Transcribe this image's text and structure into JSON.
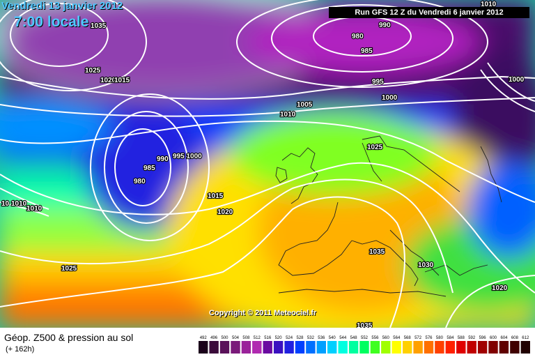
{
  "header": {
    "date": "Vendredi 13 janvier 2012",
    "time": "7:00 locale",
    "run": "Run GFS 12 Z du Vendredi 6 janvier 2012",
    "copyright": "Copyright © 2011 Meteociel.fr"
  },
  "footer": {
    "title": "Géop. Z500 & pression au sol",
    "lead": "(+ 162h)"
  },
  "legend": {
    "labels": [
      "492",
      "496",
      "500",
      "504",
      "508",
      "512",
      "516",
      "520",
      "524",
      "528",
      "532",
      "536",
      "540",
      "544",
      "548",
      "552",
      "556",
      "560",
      "564",
      "568",
      "572",
      "576",
      "580",
      "584",
      "588",
      "592",
      "596",
      "600",
      "604",
      "608",
      "612"
    ],
    "colors": [
      "#1a001a",
      "#3a0a3a",
      "#5a125a",
      "#7a1a7a",
      "#9a229a",
      "#b02ab0",
      "#6a0aa0",
      "#3a10c0",
      "#2020e0",
      "#0040ff",
      "#0070ff",
      "#00a0ff",
      "#00d0ff",
      "#00ffe0",
      "#00ffa0",
      "#00ff60",
      "#40ff20",
      "#a0ff00",
      "#ffff00",
      "#ffd000",
      "#ffa000",
      "#ff7000",
      "#ff4000",
      "#ff2000",
      "#e00000",
      "#c00000",
      "#a00000",
      "#800000",
      "#600000",
      "#400000",
      "#200000"
    ]
  },
  "isobars": [
    {
      "text": "1035"
    },
    {
      "text": "1025"
    },
    {
      "text": "1020"
    },
    {
      "text": "1015"
    },
    {
      "text": "990"
    },
    {
      "text": "980"
    },
    {
      "text": "985"
    },
    {
      "text": "995"
    },
    {
      "text": "1000"
    },
    {
      "text": "1000"
    },
    {
      "text": "1010"
    },
    {
      "text": "1005"
    },
    {
      "text": "1010"
    },
    {
      "text": "1025"
    },
    {
      "text": "985"
    },
    {
      "text": "990"
    },
    {
      "text": "995 1000"
    },
    {
      "text": "980"
    },
    {
      "text": "1015"
    },
    {
      "text": "1020"
    },
    {
      "text": "1035"
    },
    {
      "text": "1030"
    },
    {
      "text": "1020"
    },
    {
      "text": "1025"
    },
    {
      "text": "1035"
    },
    {
      "text": "10"
    },
    {
      "text": "1010"
    },
    {
      "text": "1010"
    }
  ]
}
